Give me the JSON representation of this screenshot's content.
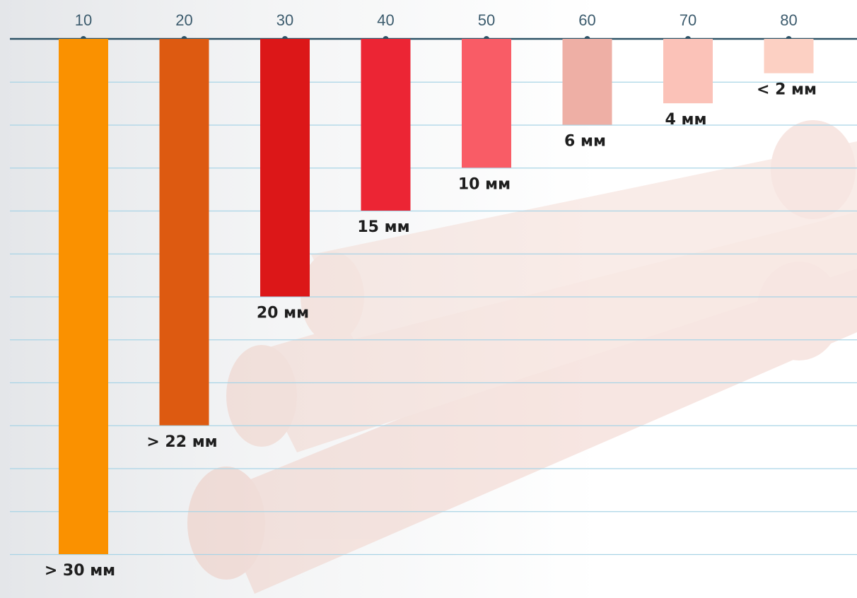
{
  "palette": {
    "background": "#f3f4f5",
    "gridline": "#a9d4e6",
    "axis": "#2d5266",
    "tick_text": "#3d5c6e",
    "label_text": "#1e1e1e",
    "illustration": "#e8b4a8"
  },
  "illustration": {
    "name": "muscle-fiber-bundle-illustration"
  },
  "chart_data": {
    "type": "bar",
    "orientation": "vertical-downward",
    "title": "",
    "xlabel": "",
    "ylabel": "",
    "categories": [
      "10",
      "20",
      "30",
      "40",
      "50",
      "60",
      "70",
      "80"
    ],
    "values": [
      12,
      9,
      6,
      4,
      3,
      2,
      1.5,
      0.8
    ],
    "ylim": [
      0,
      12
    ],
    "grid": true,
    "legend": "none",
    "bar_labels": [
      "> 30 мм",
      "> 22 мм",
      "20 мм",
      "15 мм",
      "10 мм",
      "6 мм",
      "4 мм",
      "< 2 мм"
    ],
    "colors": [
      "#fa9100",
      "#dd5a11",
      "#dc1718",
      "#ec2534",
      "#f95c66",
      "#eeafa5",
      "#fbc2b8",
      "#fcd0c3"
    ]
  }
}
